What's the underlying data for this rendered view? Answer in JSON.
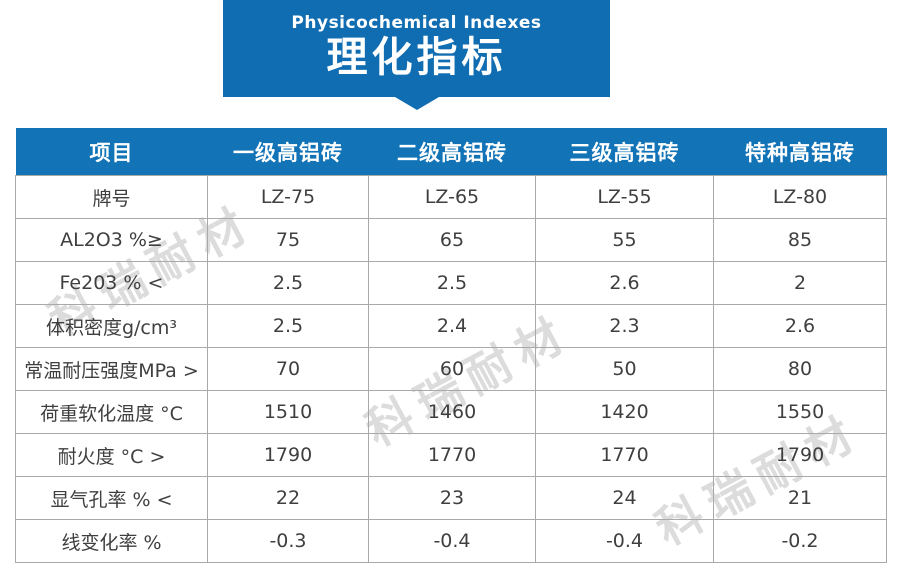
{
  "banner": {
    "subtitle_en": "Physicochemical Indexes",
    "title_zh": "理化指标"
  },
  "watermark": {
    "text": "科瑞耐材"
  },
  "table": {
    "columns": [
      "项目",
      "一级高铝砖",
      "二级高铝砖",
      "三级高铝砖",
      "特种高铝砖"
    ],
    "rows": [
      {
        "label": "牌号",
        "values": [
          "LZ-75",
          "LZ-65",
          "LZ-55",
          "LZ-80"
        ]
      },
      {
        "label": "AL2O3 %≥",
        "values": [
          "75",
          "65",
          "55",
          "85"
        ]
      },
      {
        "label": "Fe203 % <",
        "values": [
          "2.5",
          "2.5",
          "2.6",
          "2"
        ]
      },
      {
        "label": "体积密度g/cm³",
        "values": [
          "2.5",
          "2.4",
          "2.3",
          "2.6"
        ]
      },
      {
        "label": "常温耐压强度MPa >",
        "values": [
          "70",
          "60",
          "50",
          "80"
        ]
      },
      {
        "label": "荷重软化温度 °C",
        "values": [
          "1510",
          "1460",
          "1420",
          "1550"
        ]
      },
      {
        "label": "耐火度 °C >",
        "values": [
          "1790",
          "1770",
          "1770",
          "1790"
        ]
      },
      {
        "label": "显气孔率 % <",
        "values": [
          "22",
          "23",
          "24",
          "21"
        ]
      },
      {
        "label": "线变化率 %",
        "values": [
          "-0.3",
          "-0.4",
          "-0.4",
          "-0.2"
        ]
      }
    ]
  },
  "colors": {
    "banner_blue": "#116db2",
    "header_blue": "#1273b6",
    "border_gray": "#a9a9a9",
    "cell_text": "#3f3f3f",
    "watermark_gray": "#dcdcdc"
  },
  "chart_data": {
    "type": "table",
    "title": "理化指标 (Physicochemical Indexes)",
    "columns": [
      "项目",
      "一级高铝砖",
      "二级高铝砖",
      "三级高铝砖",
      "特种高铝砖"
    ],
    "rows": [
      [
        "牌号",
        "LZ-75",
        "LZ-65",
        "LZ-55",
        "LZ-80"
      ],
      [
        "AL2O3 %≥",
        75,
        65,
        55,
        85
      ],
      [
        "Fe203 % <",
        2.5,
        2.5,
        2.6,
        2
      ],
      [
        "体积密度g/cm³",
        2.5,
        2.4,
        2.3,
        2.6
      ],
      [
        "常温耐压强度MPa >",
        70,
        60,
        50,
        80
      ],
      [
        "荷重软化温度 °C",
        1510,
        1460,
        1420,
        1550
      ],
      [
        "耐火度 °C >",
        1790,
        1770,
        1770,
        1790
      ],
      [
        "显气孔率 % <",
        22,
        23,
        24,
        21
      ],
      [
        "线变化率 %",
        -0.3,
        -0.4,
        -0.4,
        -0.2
      ]
    ]
  }
}
